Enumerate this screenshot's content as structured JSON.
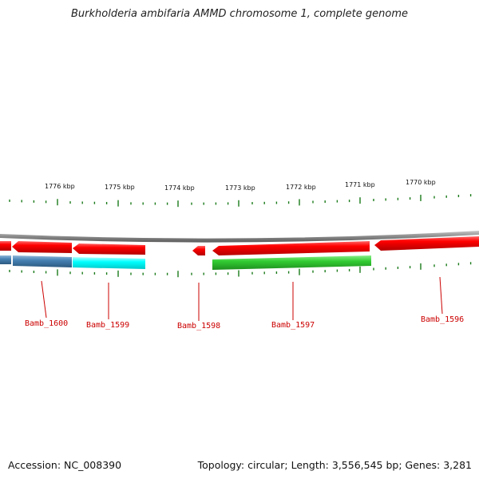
{
  "title": "Burkholderia ambifaria AMMD chromosome 1, complete genome",
  "footer": {
    "accession": "Accession: NC_008390",
    "summary": "Topology: circular; Length: 3,556,545 bp; Genes: 3,281"
  },
  "ruler": {
    "labels": [
      "1776 kbp",
      "1775 kbp",
      "1774 kbp",
      "1773 kbp",
      "1772 kbp",
      "1771 kbp",
      "1770 kbp"
    ]
  },
  "genes": [
    "Bamb_1600",
    "Bamb_1599",
    "Bamb_1598",
    "Bamb_1597",
    "Bamb_1596"
  ],
  "colors": {
    "gene_red": "#ff0000",
    "gene_blue": "#4682b4",
    "gene_cyan": "#00ffff",
    "gene_green": "#33cc33",
    "ticks": "#1a7a1a",
    "backbone": "#888888",
    "label": "#cc0000"
  }
}
